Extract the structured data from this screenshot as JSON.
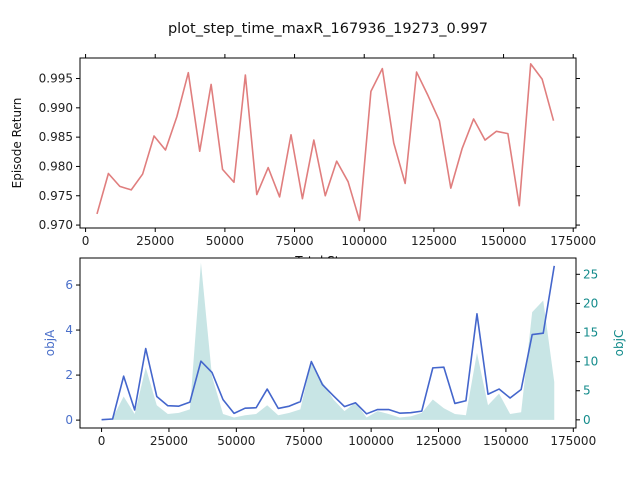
{
  "chart_data": [
    {
      "type": "line",
      "title": "plot_step_time_maxR_167936_19273_0.997",
      "xlabel": "Total Steps",
      "ylabel": "Episode Return",
      "xlim": [
        -2000,
        176000
      ],
      "ylim": [
        0.9695,
        0.9985
      ],
      "xticks": [
        0,
        25000,
        50000,
        75000,
        100000,
        125000,
        150000,
        175000
      ],
      "yticks": [
        0.97,
        0.975,
        0.98,
        0.985,
        0.99,
        0.995
      ],
      "ytick_labels": [
        "0.970",
        "0.975",
        "0.980",
        "0.985",
        "0.990",
        "0.995"
      ],
      "series": [
        {
          "color": "#e07e7e",
          "x": [
            4096,
            8192,
            12288,
            16384,
            20480,
            24576,
            28672,
            32768,
            36864,
            40960,
            45056,
            49152,
            53248,
            57344,
            61440,
            65536,
            69632,
            73728,
            77824,
            81920,
            86016,
            90112,
            94208,
            98304,
            102400,
            106496,
            110592,
            114688,
            118784,
            122880,
            126976,
            131072,
            135168,
            139264,
            143360,
            147456,
            151552,
            155648,
            159744,
            163840,
            167936
          ],
          "values": [
            0.9719,
            0.9788,
            0.9766,
            0.976,
            0.9787,
            0.9852,
            0.9828,
            0.9885,
            0.996,
            0.9826,
            0.994,
            0.9795,
            0.9773,
            0.9956,
            0.9752,
            0.9798,
            0.9748,
            0.9854,
            0.9745,
            0.9845,
            0.975,
            0.9809,
            0.9774,
            0.9708,
            0.9928,
            0.9967,
            0.984,
            0.9771,
            0.9961,
            0.9921,
            0.9878,
            0.9763,
            0.9831,
            0.9881,
            0.9845,
            0.986,
            0.9856,
            0.9733,
            0.9975,
            0.9949,
            0.9878
          ]
        }
      ]
    },
    {
      "type": "line",
      "xlim": [
        -8000,
        176000
      ],
      "ylim": [
        -0.35,
        7.2
      ],
      "ylim_right": [
        -1.4,
        27.8
      ],
      "xticks": [
        0,
        25000,
        50000,
        75000,
        100000,
        125000,
        150000,
        175000
      ],
      "yticks": [
        0,
        2,
        4,
        6
      ],
      "yticks_right": [
        0,
        5,
        10,
        15,
        20,
        25
      ],
      "ylabel": "objA",
      "ylabel_right": "objC",
      "ylabel_color": "#4a6fc9",
      "ylabel_right_color": "#138b8b",
      "series": [
        {
          "name": "objA",
          "axis": "left",
          "color": "#4466cc",
          "x": [
            0,
            4096,
            8192,
            12288,
            16384,
            20480,
            24576,
            28672,
            32768,
            36864,
            40960,
            45056,
            49152,
            53248,
            57344,
            61440,
            65536,
            69632,
            73728,
            77824,
            81920,
            86016,
            90112,
            94208,
            98304,
            102400,
            106496,
            110592,
            114688,
            118784,
            122880,
            126976,
            131072,
            135168,
            139264,
            143360,
            147456,
            151552,
            155648,
            159744,
            163840,
            167936
          ],
          "values": [
            0.02,
            0.05,
            1.95,
            0.45,
            3.18,
            1.05,
            0.64,
            0.62,
            0.8,
            2.62,
            2.12,
            0.91,
            0.3,
            0.53,
            0.55,
            1.38,
            0.52,
            0.62,
            0.82,
            2.6,
            1.58,
            1.08,
            0.6,
            0.77,
            0.28,
            0.47,
            0.47,
            0.31,
            0.33,
            0.4,
            2.32,
            2.35,
            0.74,
            0.86,
            4.72,
            1.15,
            1.38,
            0.98,
            1.36,
            3.8,
            3.86,
            6.85
          ]
        },
        {
          "name": "objC",
          "axis": "right",
          "style": "area",
          "color": "#b6dcdc",
          "x": [
            0,
            4096,
            8192,
            12288,
            16384,
            20480,
            24576,
            28672,
            32768,
            36864,
            40960,
            45056,
            49152,
            53248,
            57344,
            61440,
            65536,
            69632,
            73728,
            77824,
            81920,
            86016,
            90112,
            94208,
            98304,
            102400,
            106496,
            110592,
            114688,
            118784,
            122880,
            126976,
            131072,
            135168,
            139264,
            143360,
            147456,
            151552,
            155648,
            159744,
            163840,
            167936
          ],
          "values": [
            0.1,
            0.3,
            4.0,
            1.0,
            9.0,
            2.5,
            1.0,
            1.2,
            1.8,
            27.0,
            7.5,
            1.0,
            0.4,
            0.8,
            1.0,
            2.5,
            0.8,
            1.2,
            1.8,
            10.0,
            6.5,
            3.5,
            1.5,
            3.0,
            0.4,
            1.5,
            1.0,
            0.4,
            0.6,
            1.2,
            3.5,
            2.0,
            1.0,
            0.8,
            11.5,
            2.5,
            4.5,
            1.0,
            1.3,
            18.5,
            20.5,
            6.5
          ]
        }
      ]
    }
  ]
}
